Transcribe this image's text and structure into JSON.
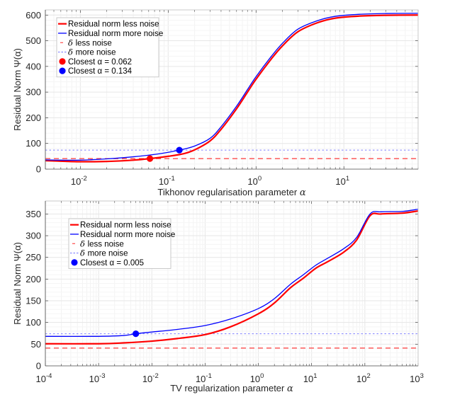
{
  "chart_data": [
    {
      "type": "line",
      "xscale": "log",
      "xlabel": "Tikhonov regularisation parameter",
      "xlabel_symbol": "α",
      "ylabel": "Residual Norm Ψ(α)",
      "xlim": [
        0.004,
        70
      ],
      "ylim": [
        0,
        620
      ],
      "xticks": [
        {
          "value": 0.01,
          "base": "10",
          "exp": "-2"
        },
        {
          "value": 0.1,
          "base": "10",
          "exp": "-1"
        },
        {
          "value": 1,
          "base": "10",
          "exp": "0"
        },
        {
          "value": 10,
          "base": "10",
          "exp": "1"
        }
      ],
      "yticks": [
        0,
        100,
        200,
        300,
        400,
        500,
        600
      ],
      "grid": true,
      "legend_position": "top-left",
      "series": [
        {
          "name": "Residual norm less noise",
          "color": "#ff0000",
          "style": "solid",
          "weight": "thick",
          "x": [
            0.004,
            0.006,
            0.01,
            0.02,
            0.04,
            0.062,
            0.1,
            0.15,
            0.2,
            0.3,
            0.4,
            0.6,
            0.8,
            1.0,
            1.5,
            2,
            3,
            5,
            8,
            15,
            30,
            70
          ],
          "y": [
            33,
            31,
            29,
            30,
            35,
            41,
            50,
            60,
            75,
            110,
            155,
            235,
            300,
            350,
            430,
            480,
            535,
            570,
            588,
            596,
            599,
            600
          ]
        },
        {
          "name": "Residual norm more noise",
          "color": "#0000ff",
          "style": "solid",
          "weight": "thin",
          "x": [
            0.004,
            0.006,
            0.01,
            0.02,
            0.04,
            0.08,
            0.134,
            0.2,
            0.3,
            0.4,
            0.6,
            0.8,
            1.0,
            1.5,
            2,
            3,
            5,
            8,
            15,
            30,
            70
          ],
          "y": [
            36,
            35,
            35,
            40,
            48,
            60,
            74,
            90,
            120,
            165,
            245,
            310,
            360,
            440,
            490,
            545,
            578,
            595,
            603,
            606,
            607
          ]
        },
        {
          "name": "δ less noise",
          "color": "#ff3b3b",
          "style": "dashed",
          "constant": 41
        },
        {
          "name": "δ more noise",
          "color": "#7f7fff",
          "style": "dotted",
          "constant": 74
        }
      ],
      "markers": [
        {
          "name": "Closest α = 0.062",
          "color": "#ff0000",
          "x": 0.062,
          "y": 41
        },
        {
          "name": "Closest α = 0.134",
          "color": "#0000ff",
          "x": 0.134,
          "y": 74
        }
      ],
      "legend": [
        {
          "label": "Residual norm less noise",
          "kind": "line",
          "color": "#ff0000",
          "style": "solid"
        },
        {
          "label": "Residual norm more noise",
          "kind": "line",
          "color": "#0000ff",
          "style": "solid"
        },
        {
          "label": "less noise",
          "symbol": "δ",
          "kind": "line",
          "color": "#ff3b3b",
          "style": "dashed"
        },
        {
          "label": "more noise",
          "symbol": "δ",
          "kind": "line",
          "color": "#7f7fff",
          "style": "dotted"
        },
        {
          "label": "Closest α = 0.062",
          "kind": "marker",
          "color": "#ff0000"
        },
        {
          "label": "Closest α = 0.134",
          "kind": "marker",
          "color": "#0000ff"
        }
      ]
    },
    {
      "type": "line",
      "xscale": "log",
      "xlabel": "TV regularization parameter",
      "xlabel_symbol": "α",
      "ylabel": "Residual Norm Ψ(α)",
      "xlim": [
        0.0001,
        1000
      ],
      "ylim": [
        0,
        380
      ],
      "xticks": [
        {
          "value": 0.0001,
          "base": "10",
          "exp": "-4"
        },
        {
          "value": 0.001,
          "base": "10",
          "exp": "-3"
        },
        {
          "value": 0.01,
          "base": "10",
          "exp": "-2"
        },
        {
          "value": 0.1,
          "base": "10",
          "exp": "-1"
        },
        {
          "value": 1,
          "base": "10",
          "exp": "0"
        },
        {
          "value": 10,
          "base": "10",
          "exp": "1"
        },
        {
          "value": 100,
          "base": "10",
          "exp": "2"
        },
        {
          "value": 1000,
          "base": "10",
          "exp": "3"
        }
      ],
      "yticks": [
        0,
        50,
        100,
        150,
        200,
        250,
        300,
        350
      ],
      "grid": true,
      "legend_position": "top-left",
      "series": [
        {
          "name": "Residual norm less noise",
          "color": "#ff0000",
          "style": "solid",
          "weight": "thick",
          "x": [
            0.0001,
            0.001,
            0.003,
            0.01,
            0.03,
            0.1,
            0.3,
            1,
            2,
            4,
            7,
            12,
            20,
            40,
            70,
            125,
            200,
            500,
            1000
          ],
          "y": [
            51,
            51,
            53,
            57,
            63,
            72,
            90,
            120,
            145,
            180,
            202,
            225,
            240,
            262,
            290,
            346,
            350,
            352,
            357
          ]
        },
        {
          "name": "Residual norm more noise",
          "color": "#0000ff",
          "style": "solid",
          "weight": "thin",
          "x": [
            0.0001,
            0.001,
            0.003,
            0.005,
            0.01,
            0.03,
            0.1,
            0.3,
            1,
            2,
            4,
            7,
            12,
            20,
            40,
            70,
            125,
            200,
            500,
            1000
          ],
          "y": [
            68,
            68,
            70,
            74,
            78,
            84,
            93,
            108,
            132,
            155,
            188,
            210,
            232,
            248,
            270,
            296,
            350,
            355,
            356,
            361
          ]
        },
        {
          "name": "δ less noise",
          "color": "#ff3b3b",
          "style": "dashed",
          "constant": 41
        },
        {
          "name": "δ more noise",
          "color": "#7f7fff",
          "style": "dotted",
          "constant": 74
        }
      ],
      "markers": [
        {
          "name": "Closest α = 0.005",
          "color": "#0000ff",
          "x": 0.005,
          "y": 74
        }
      ],
      "legend": [
        {
          "label": "Residual norm less noise",
          "kind": "line",
          "color": "#ff0000",
          "style": "solid"
        },
        {
          "label": "Residual norm more noise",
          "kind": "line",
          "color": "#0000ff",
          "style": "solid"
        },
        {
          "label": "less noise",
          "symbol": "δ",
          "kind": "line",
          "color": "#ff3b3b",
          "style": "dashed"
        },
        {
          "label": "more noise",
          "symbol": "δ",
          "kind": "line",
          "color": "#7f7fff",
          "style": "dotted"
        },
        {
          "label": "Closest α = 0.005",
          "kind": "marker",
          "color": "#0000ff"
        }
      ]
    }
  ]
}
